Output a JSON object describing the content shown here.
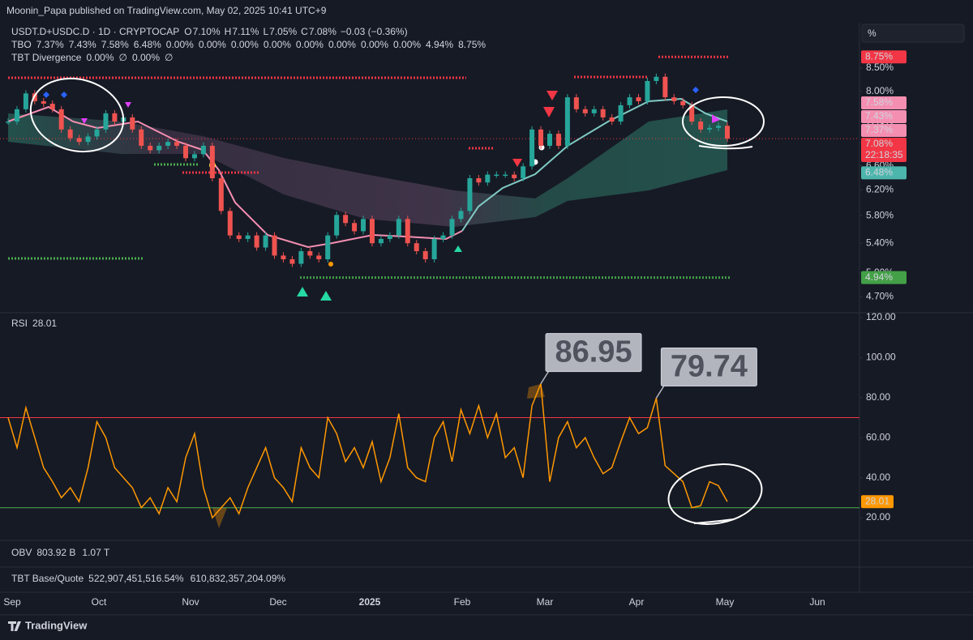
{
  "header": {
    "publisher": "Moonin_Papa published on TradingView.com, May 02, 2025 10:41 UTC+9",
    "scale_button": "%",
    "brand": "TradingView"
  },
  "chart_data": [
    {
      "type": "candlestick",
      "title": "USDT.D+USDC.D · 1D · CRYPTOCAP",
      "ohlc": [
        {
          "key": "O",
          "value": "7.10%"
        },
        {
          "key": "H",
          "value": "7.11%"
        },
        {
          "key": "L",
          "value": "7.05%"
        },
        {
          "key": "C",
          "value": "7.08%"
        }
      ],
      "change": "−0.03 (−0.36%)",
      "indicators": [
        {
          "name": "TBO",
          "values": [
            {
              "text": "7.37%",
              "color": "#f48fb1"
            },
            {
              "text": "7.43%",
              "color": "#f48fb1"
            },
            {
              "text": "7.58%",
              "color": "#f48fb1"
            },
            {
              "text": "6.48%",
              "color": "#66bb6a"
            },
            {
              "text": "0.00%",
              "color": "#4caf50"
            },
            {
              "text": "0.00%",
              "color": "#ffffff"
            },
            {
              "text": "0.00%",
              "color": "#ff9800"
            },
            {
              "text": "0.00%",
              "color": "#4caf50"
            },
            {
              "text": "0.00%",
              "color": "#e040fb"
            },
            {
              "text": "0.00%",
              "color": "#ffeb3b"
            },
            {
              "text": "0.00%",
              "color": "#2962ff"
            },
            {
              "text": "0.00%",
              "color": "#f23645"
            },
            {
              "text": "4.94%",
              "color": "#4caf50"
            },
            {
              "text": "8.75%",
              "color": "#f23645"
            }
          ]
        },
        {
          "name": "TBT Divergence",
          "values": [
            {
              "text": "0.00%",
              "color": "#4caf50"
            },
            {
              "text": "∅",
              "color": "#b2b5be"
            },
            {
              "text": "0.00%",
              "color": "#f23645"
            },
            {
              "text": "∅",
              "color": "#b2b5be"
            }
          ]
        }
      ],
      "x_labels": [
        "Sep",
        "Oct",
        "Nov",
        "Dec",
        "2025",
        "Feb",
        "Mar",
        "Apr",
        "May",
        "Jun"
      ],
      "values": [
        7.4,
        7.64,
        7.96,
        7.8,
        7.75,
        7.64,
        7.25,
        7.09,
        7.02,
        7.12,
        7.25,
        7.56,
        7.4,
        7.48,
        7.25,
        6.95,
        6.87,
        6.95,
        7.02,
        6.95,
        6.73,
        6.8,
        6.95,
        6.39,
        5.87,
        5.51,
        5.46,
        5.51,
        5.34,
        5.51,
        5.23,
        5.18,
        5.12,
        5.29,
        5.23,
        5.18,
        5.51,
        5.81,
        5.69,
        5.57,
        5.75,
        5.4,
        5.46,
        5.51,
        5.75,
        5.4,
        5.29,
        5.18,
        5.46,
        5.51,
        5.75,
        5.87,
        6.39,
        6.32,
        6.45,
        6.45,
        6.45,
        6.39,
        6.59,
        7.25,
        6.95,
        7.17,
        6.95,
        7.88,
        7.64,
        7.56,
        7.64,
        7.48,
        7.4,
        7.72,
        7.88,
        7.8,
        8.22,
        8.31,
        7.88,
        7.8,
        7.72,
        7.4,
        7.25,
        7.28,
        7.32,
        7.08
      ],
      "up_color": "#26a69a",
      "down_color": "#ef5350",
      "log_scale": true,
      "ylim": [
        4.52,
        9.56
      ],
      "yticks": [
        {
          "value": 4.7,
          "label": "4.70%"
        },
        {
          "value": 5.0,
          "label": "5.00%"
        },
        {
          "value": 5.4,
          "label": "5.40%"
        },
        {
          "value": 5.8,
          "label": "5.80%"
        },
        {
          "value": 6.2,
          "label": "6.20%"
        },
        {
          "value": 6.6,
          "label": "6.60%"
        },
        {
          "value": 7.0,
          "label": "7.00%"
        },
        {
          "value": 7.4,
          "label": "7.40%"
        },
        {
          "value": 8.0,
          "label": "8.00%"
        },
        {
          "value": 8.5,
          "label": "8.50%"
        }
      ],
      "price_labels": [
        {
          "value": 8.75,
          "label": "8.75%",
          "color": "#f23645"
        },
        {
          "value": 7.58,
          "label": "7.58%",
          "color": "#f48fb1"
        },
        {
          "value": 7.43,
          "label": "7.43%",
          "color": "#f48fb1"
        },
        {
          "value": 7.37,
          "label": "7.37%",
          "color": "#f48fb1"
        },
        {
          "value": 7.08,
          "label": "7.08%",
          "countdown": "22:18:35",
          "color": "#f23645"
        },
        {
          "value": 6.48,
          "label": "6.48%",
          "color": "#4db6ac"
        },
        {
          "value": 4.94,
          "label": "4.94%",
          "color": "#43a047"
        }
      ]
    },
    {
      "type": "line",
      "title": "RSI",
      "color": "#ff9800",
      "values": [
        70,
        55,
        75,
        60,
        45,
        38,
        30,
        35,
        28,
        45,
        68,
        60,
        45,
        40,
        35,
        25,
        30,
        22,
        35,
        28,
        50,
        62,
        35,
        20,
        25,
        30,
        22,
        35,
        45,
        55,
        40,
        35,
        28,
        55,
        45,
        40,
        70,
        62,
        48,
        55,
        45,
        58,
        38,
        50,
        72,
        45,
        40,
        38,
        60,
        68,
        48,
        74,
        62,
        76,
        60,
        72,
        50,
        55,
        40,
        76,
        86.95,
        38,
        60,
        68,
        55,
        60,
        50,
        42,
        45,
        58,
        70,
        62,
        65,
        79.74,
        46,
        42,
        38,
        25,
        26,
        38,
        36,
        28.01
      ],
      "ylim": [
        8.7,
        121.6
      ],
      "yticks": [
        {
          "value": 20,
          "label": "20.00"
        },
        {
          "value": 40,
          "label": "40.00"
        },
        {
          "value": 60,
          "label": "60.00"
        },
        {
          "value": 80,
          "label": "80.00"
        },
        {
          "value": 100,
          "label": "100.00"
        },
        {
          "value": 120,
          "label": "120.00"
        }
      ],
      "bands": [
        {
          "value": 70,
          "color": "#f23645"
        },
        {
          "value": 25,
          "color": "#4caf50"
        }
      ]
    }
  ],
  "panes": [
    {
      "title": "OBV",
      "values": [
        {
          "text": "803.92 B",
          "color": "#2962ff"
        },
        {
          "text": "1.07 T",
          "color": "#ffffff"
        }
      ]
    },
    {
      "title": "TBT Base/Quote",
      "values": [
        {
          "text": "522,907,451,516.54%",
          "color": "#b2b5be"
        },
        {
          "text": "610,832,357,204.09%",
          "color": "#ffeb3b"
        }
      ]
    }
  ]
}
